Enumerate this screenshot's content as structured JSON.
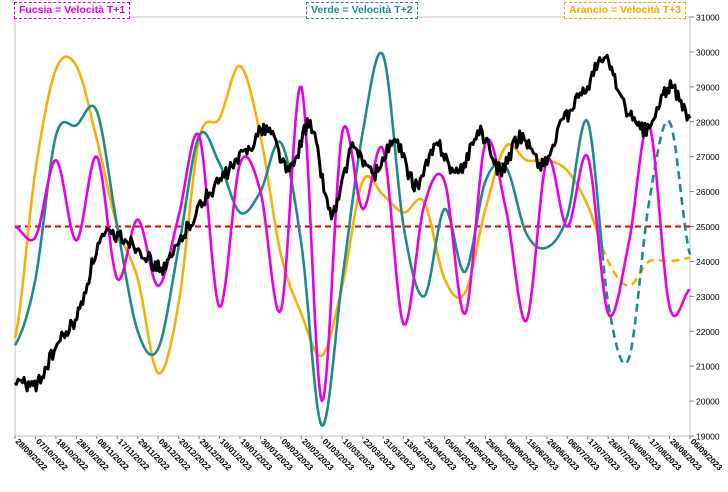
{
  "legend": {
    "fuchsia": "Fucsia = Velocità T+1",
    "green": "Verde = Velocità T+2",
    "orange": "Arancio = Velocità T+3"
  },
  "colors": {
    "price": "#000000",
    "fuchsia": "#e600e6",
    "green": "#1e8a8a",
    "orange": "#f2b10c",
    "reference": "#e00000"
  },
  "chart_data": {
    "type": "line",
    "y_right_ticks": [
      19000,
      20000,
      21000,
      22000,
      23000,
      24000,
      25000,
      26000,
      27000,
      28000,
      29000,
      30000,
      31000
    ],
    "ylim": [
      19000,
      31000
    ],
    "reference_line": {
      "value": 25000,
      "style": "dashed",
      "color": "#e00000"
    },
    "x_dates": [
      "28/09/2022",
      "07/10/2022",
      "18/10/2022",
      "28/10/2022",
      "08/11/2022",
      "17/11/2022",
      "29/11/2022",
      "09/12/2022",
      "20/12/2022",
      "29/12/2022",
      "10/01/2023",
      "19/01/2023",
      "30/01/2023",
      "09/02/2023",
      "20/02/2023",
      "01/03/2023",
      "10/03/2023",
      "22/03/2023",
      "31/03/2023",
      "13/04/2023",
      "25/04/2023",
      "05/05/2023",
      "16/05/2023",
      "25/05/2023",
      "06/06/2023",
      "15/06/2023",
      "26/06/2023",
      "06/07/2023",
      "17/07/2023",
      "26/07/2023",
      "04/08/2023",
      "17/08/2023",
      "28/08/2023",
      "06/09/2023"
    ],
    "series": [
      {
        "key": "price",
        "style": "solid",
        "values": [
          20600,
          20500,
          21600,
          22500,
          24500,
          24700,
          24300,
          23800,
          24800,
          25800,
          26500,
          27200,
          27800,
          26600,
          27900,
          25400,
          27200,
          26500,
          27400,
          26200,
          27300,
          26500,
          27700,
          26600,
          27600,
          26800,
          28000,
          28900,
          29800,
          28300,
          27800,
          29000,
          28100
        ]
      },
      {
        "key": "fuchsia",
        "style": "solid",
        "values": [
          25000,
          24700,
          26900,
          24600,
          27000,
          23500,
          25200,
          23300,
          25300,
          27600,
          22700,
          26800,
          26000,
          22600,
          29000,
          20000,
          27700,
          25500,
          27200,
          22200,
          25600,
          26300,
          22500,
          27400,
          25500,
          22300,
          26900,
          25000,
          27000,
          22500,
          24500,
          27900,
          22700,
          23200
        ]
      },
      {
        "key": "green",
        "style": "solid-then-dashed",
        "values": [
          21600,
          23500,
          27600,
          27900,
          28300,
          25000,
          22000,
          21500,
          24400,
          27600,
          26800,
          25400,
          26000,
          27400,
          24500,
          19300,
          23500,
          27700,
          29900,
          25000,
          23000,
          25500,
          23700,
          26300,
          26700,
          24800,
          24400,
          25300,
          28000,
          22800,
          21200,
          25700,
          28000,
          24200
        ]
      },
      {
        "key": "orange",
        "style": "solid-then-dashed",
        "values": [
          21800,
          26600,
          29500,
          29600,
          27500,
          25000,
          23500,
          20800,
          22800,
          27500,
          28100,
          29600,
          27600,
          24200,
          22500,
          21300,
          23300,
          26300,
          25900,
          25400,
          25700,
          23500,
          23100,
          25500,
          27300,
          26900,
          26900,
          26600,
          25600,
          24000,
          23300,
          24000,
          24000,
          24100
        ]
      }
    ]
  }
}
